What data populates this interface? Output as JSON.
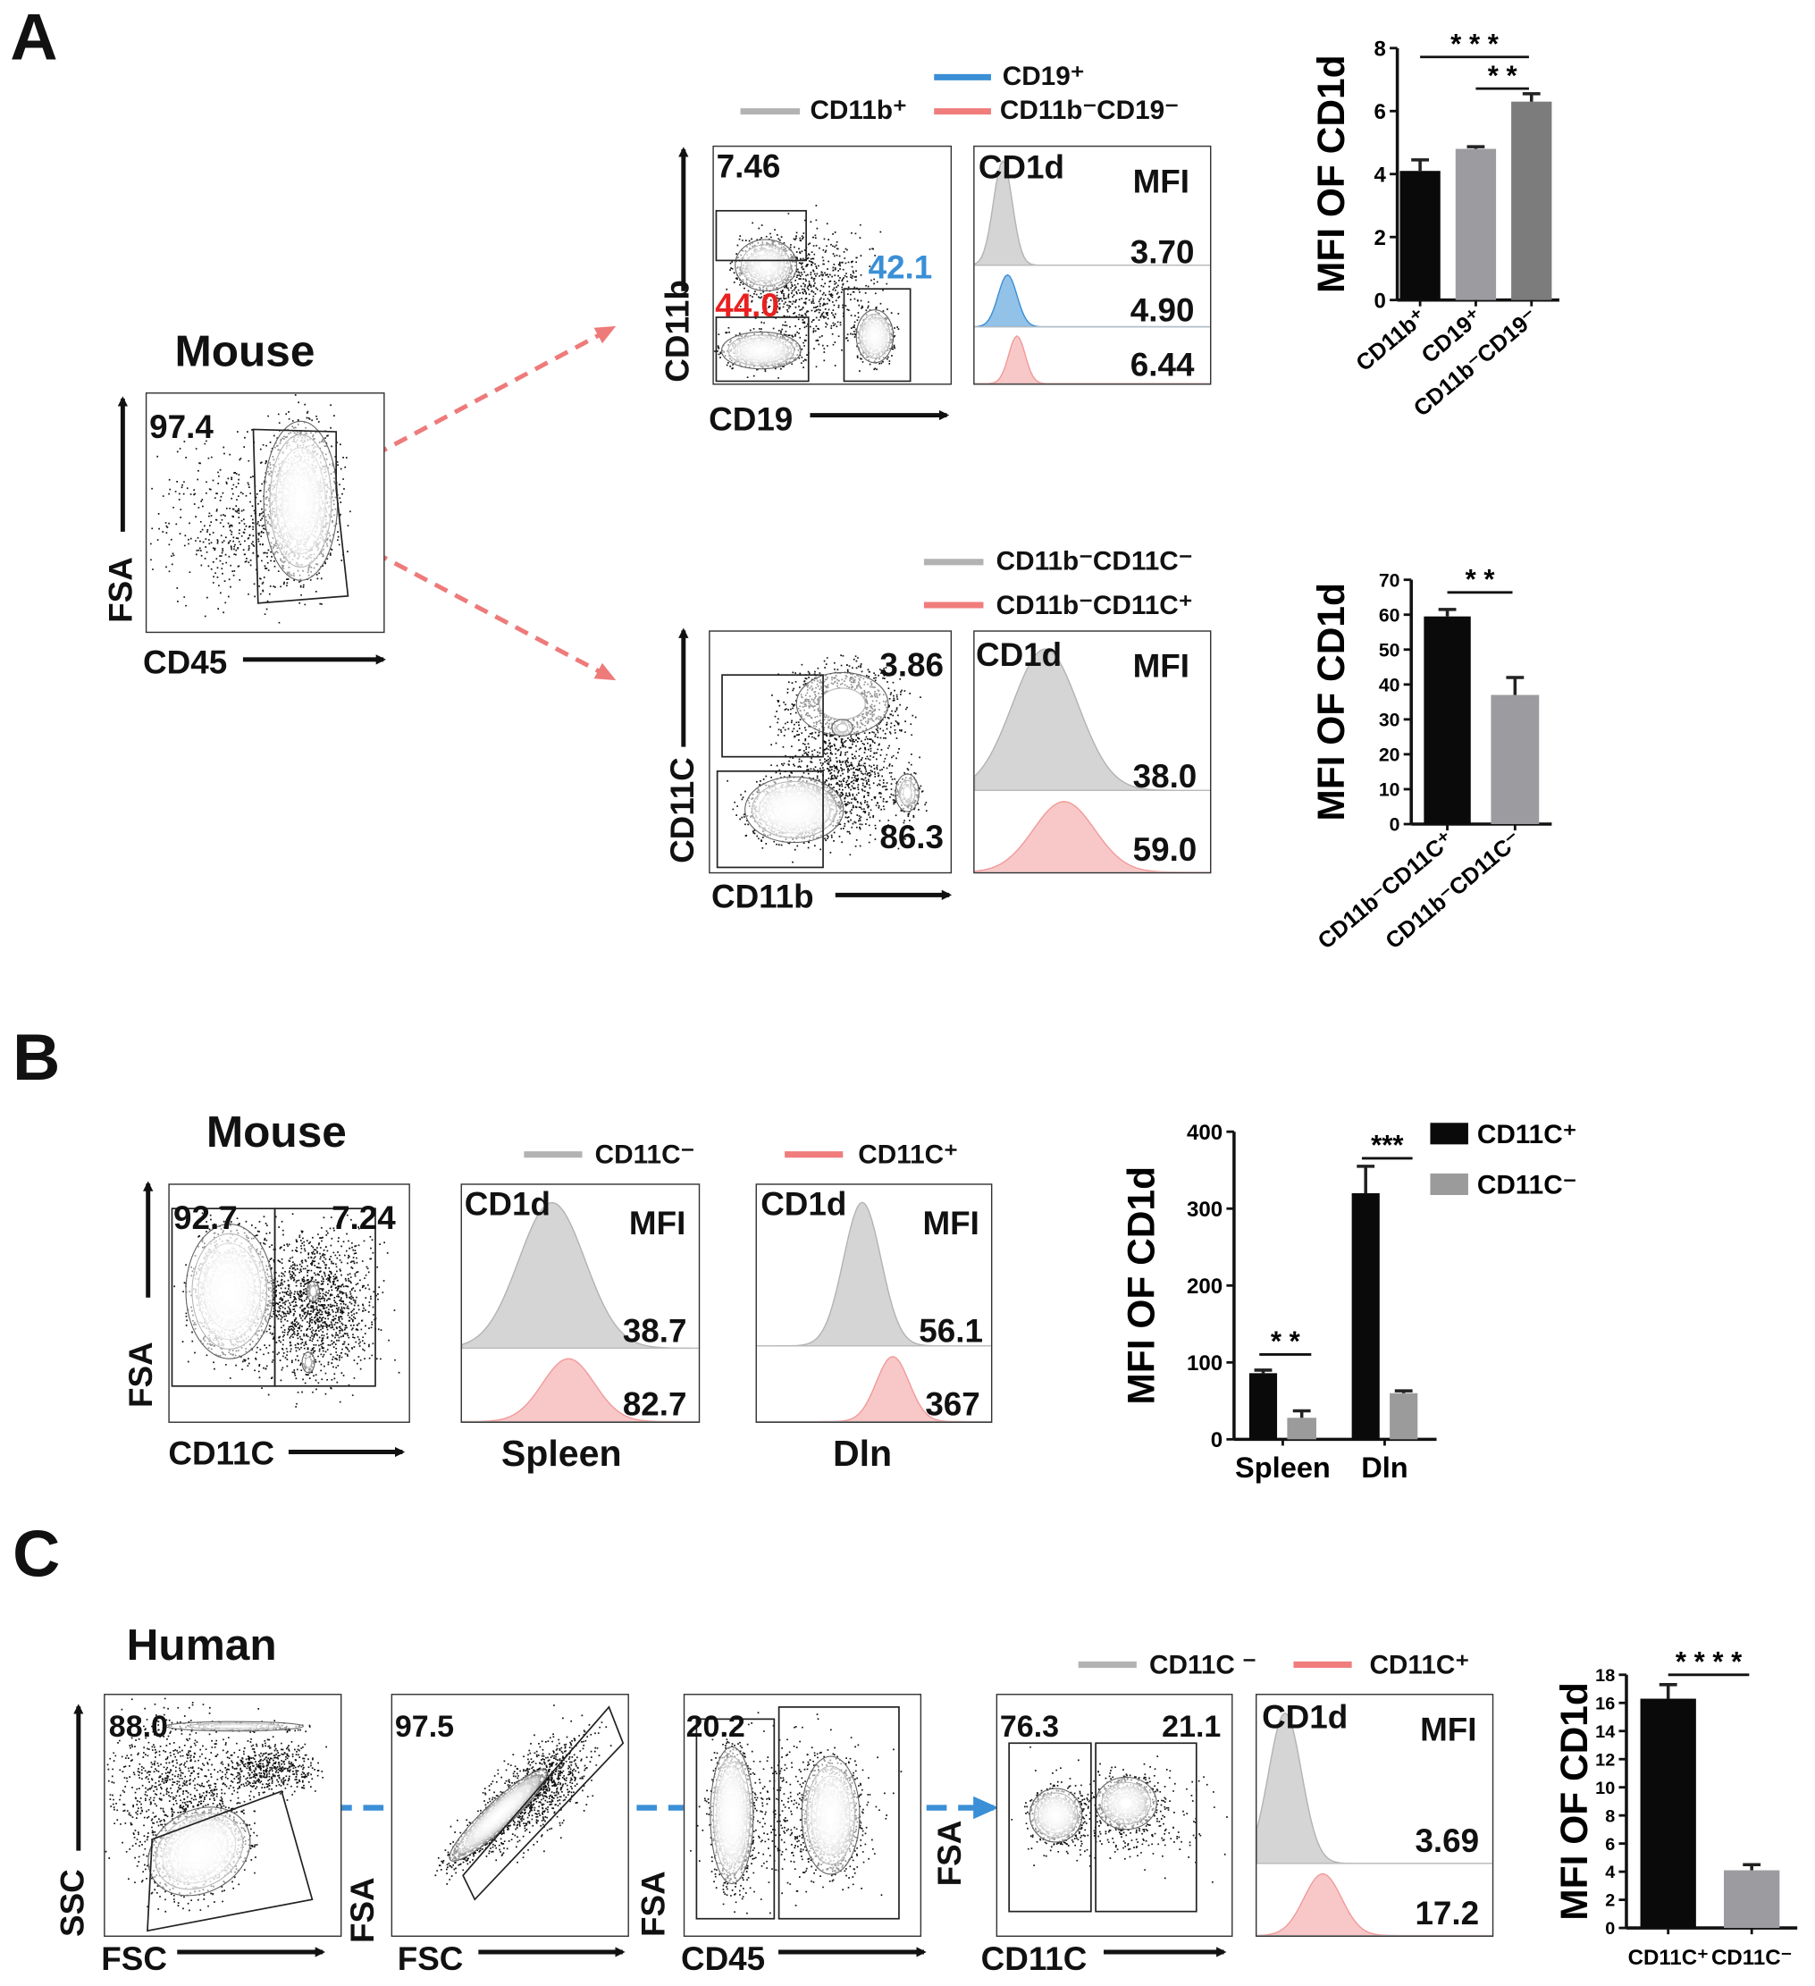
{
  "panels": {
    "A": {
      "letter": "A",
      "species": "Mouse",
      "gate_plot": {
        "y_axis": "FSA",
        "x_axis": "CD45",
        "gate_value": "97.4"
      },
      "top": {
        "legend": {
          "cd19_pos": "CD19⁺",
          "cd11b_pos": "CD11b⁺",
          "double_neg": "CD11b⁻CD19⁻"
        },
        "plot": {
          "y_axis": "CD11b",
          "x_axis": "CD19",
          "q_upper": "7.46",
          "q_lower": "44.0",
          "q_right": "42.1"
        },
        "histogram": {
          "marker": "CD1d",
          "mfi_label": "MFI",
          "mfi_values": [
            "3.70",
            "4.90",
            "6.44"
          ]
        }
      },
      "bottom": {
        "legend": {
          "neg_neg": "CD11b⁻CD11C⁻",
          "neg_pos": "CD11b⁻CD11C⁺"
        },
        "plot": {
          "y_axis": "CD11C",
          "x_axis": "CD11b",
          "upper": "3.86",
          "lower": "86.3"
        },
        "histogram": {
          "marker": "CD1d",
          "mfi_label": "MFI",
          "mfi_values": [
            "38.0",
            "59.0"
          ]
        }
      }
    },
    "B": {
      "letter": "B",
      "species": "Mouse",
      "plot": {
        "y_axis": "FSA",
        "x_axis": "CD11C",
        "left": "92.7",
        "right": "7.24"
      },
      "legend": {
        "neg": "CD11C⁻",
        "pos": "CD11C⁺"
      },
      "hist_spleen": {
        "marker": "CD1d",
        "mfi_label": "MFI",
        "mfi_values": [
          "38.7",
          "82.7"
        ],
        "tissue": "Spleen"
      },
      "hist_dln": {
        "marker": "CD1d",
        "mfi_label": "MFI",
        "mfi_values": [
          "56.1",
          "367"
        ],
        "tissue": "Dln"
      }
    },
    "C": {
      "letter": "C",
      "species": "Human",
      "legend": {
        "neg": "CD11C ⁻",
        "pos": "CD11C⁺"
      },
      "plot1": {
        "y_axis": "SSC",
        "x_axis": "FSC",
        "value": "88.0"
      },
      "plot2": {
        "y_axis": "FSA",
        "x_axis": "FSC",
        "value": "97.5"
      },
      "plot3": {
        "y_axis": "FSA",
        "x_axis": "CD45",
        "value": "20.2"
      },
      "plot4": {
        "y_axis": "FSA",
        "x_axis": "CD11C",
        "left": "76.3",
        "right": "21.1"
      },
      "histogram": {
        "marker": "CD1d",
        "mfi_label": "MFI",
        "mfi_values": [
          "3.69",
          "17.2"
        ]
      }
    }
  },
  "colors": {
    "gray": "#b3b3b3",
    "pink": "#f07c7c",
    "blue": "#3a8fd6",
    "red": "#e8201f",
    "arrow_pink": "#ee7a7a",
    "arrow_blue": "#3a8fd6"
  },
  "chart_data": [
    {
      "type": "bar",
      "title": "",
      "xlabel": "",
      "ylabel": "MFI OF CD1d",
      "categories": [
        "CD11b⁺",
        "CD19⁺",
        "CD11b⁻CD19⁻"
      ],
      "values": [
        4.1,
        4.8,
        6.3
      ],
      "errors": [
        0.35,
        0.07,
        0.25
      ],
      "colors": [
        "#0a0a0a",
        "#9b9ba0",
        "#7c7c7c"
      ],
      "ylim": [
        0,
        8
      ],
      "yticks": [
        "0",
        "2",
        "4",
        "6",
        "8"
      ],
      "significance": [
        {
          "from": 0,
          "to": 2,
          "label": "* * *"
        },
        {
          "from": 1,
          "to": 2,
          "label": "* *"
        }
      ]
    },
    {
      "type": "bar",
      "title": "",
      "xlabel": "",
      "ylabel": "MFI OF CD1d",
      "categories": [
        "CD11b⁻CD11C⁺",
        "CD11b⁻CD11C⁻"
      ],
      "values": [
        59.5,
        37
      ],
      "errors": [
        2,
        5
      ],
      "colors": [
        "#0a0a0a",
        "#9b9ba0"
      ],
      "ylim": [
        0,
        70
      ],
      "yticks": [
        "0",
        "10",
        "20",
        "30",
        "40",
        "50",
        "60",
        "70"
      ],
      "significance": [
        {
          "from": 0,
          "to": 1,
          "label": "* *"
        }
      ]
    },
    {
      "type": "bar",
      "title": "",
      "xlabel": "",
      "ylabel": "MFI OF CD1d",
      "categories": [
        "Spleen",
        "Dln"
      ],
      "series": [
        {
          "name": "CD11C⁺",
          "values": [
            86,
            320
          ],
          "errors": [
            4,
            35
          ],
          "color": "#0a0a0a"
        },
        {
          "name": "CD11C⁻",
          "values": [
            28,
            60
          ],
          "errors": [
            9,
            3
          ],
          "color": "#9b9b9b"
        }
      ],
      "legend_position": "top-right",
      "ylim": [
        0,
        400
      ],
      "yticks": [
        "0",
        "100",
        "200",
        "300",
        "400"
      ],
      "significance": [
        {
          "category": 0,
          "label": "* *"
        },
        {
          "category": 1,
          "label": "***"
        }
      ]
    },
    {
      "type": "bar",
      "title": "",
      "xlabel": "",
      "ylabel": "MFI OF CD1d",
      "categories": [
        "CD11C⁺",
        "CD11C⁻"
      ],
      "values": [
        16.3,
        4.1
      ],
      "errors": [
        1.0,
        0.4
      ],
      "colors": [
        "#0a0a0a",
        "#9b9ba0"
      ],
      "ylim": [
        0,
        18
      ],
      "yticks": [
        "0",
        "2",
        "4",
        "6",
        "8",
        "10",
        "12",
        "14",
        "16",
        "18"
      ],
      "significance": [
        {
          "from": 0,
          "to": 1,
          "label": "* * * *"
        }
      ]
    }
  ]
}
